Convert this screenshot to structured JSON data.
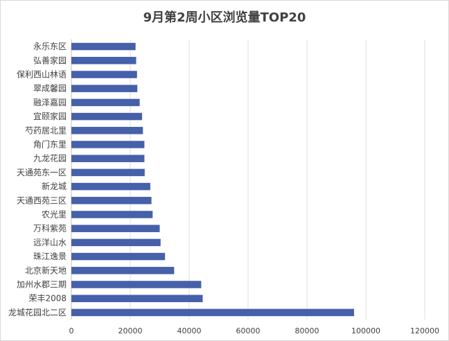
{
  "chart_data": {
    "type": "bar",
    "orientation": "horizontal",
    "title": "9月第2周小区浏览量TOP20",
    "xlabel": "",
    "ylabel": "",
    "xlim": [
      0,
      120000
    ],
    "x_ticks": [
      0,
      20000,
      40000,
      60000,
      80000,
      100000,
      120000
    ],
    "x_tick_labels": [
      "0",
      "20000",
      "40000",
      "60000",
      "80000",
      "100000",
      "120000"
    ],
    "grid": "vertical",
    "legend": "none",
    "bar_color": "#4660aa",
    "categories": [
      "永乐东区",
      "弘善家园",
      "保利西山林语",
      "翠成馨园",
      "融泽嘉园",
      "宜颐家园",
      "芍药居北里",
      "角门东里",
      "九龙花园",
      "天通苑东一区",
      "新龙城",
      "天通西苑三区",
      "农光里",
      "万科紫苑",
      "远洋山水",
      "珠江逸景",
      "北京新天地",
      "加州水郡三期",
      "荣丰2008",
      "龙城花园北二区"
    ],
    "values": [
      21800,
      22000,
      22300,
      22400,
      23200,
      24000,
      24300,
      24800,
      24800,
      24900,
      26800,
      27200,
      27600,
      30000,
      30300,
      31800,
      34900,
      44100,
      44600,
      96000
    ]
  }
}
